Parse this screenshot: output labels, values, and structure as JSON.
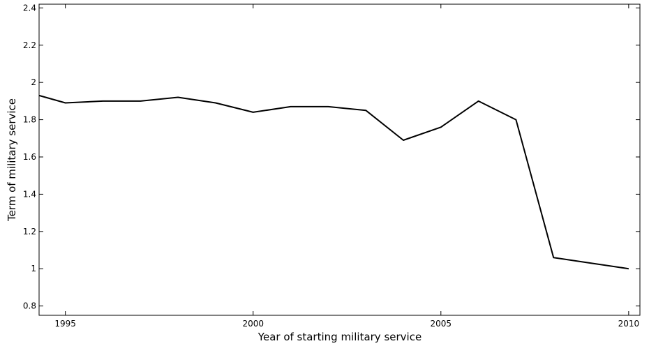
{
  "chart_data": {
    "type": "line",
    "title": "",
    "xlabel": "Year of starting military service",
    "ylabel": "Term of military service",
    "xlim": [
      1994.3,
      2010.3
    ],
    "ylim": [
      0.75,
      2.42
    ],
    "xticks": [
      1995,
      2000,
      2005,
      2010
    ],
    "yticks": [
      0.8,
      1,
      1.2,
      1.4,
      1.6,
      1.8,
      2,
      2.2,
      2.4
    ],
    "xtick_labels": [
      "1995",
      "2000",
      "2005",
      "2010"
    ],
    "ytick_labels": [
      "0.8",
      "1",
      "1.2",
      "1.4",
      "1.6",
      "1.8",
      "2",
      "2.2",
      "2.4"
    ],
    "grid": false,
    "legend": "none",
    "line_color": "#000000",
    "series": [
      {
        "x": [
          1994.3,
          1995,
          1996,
          1997,
          1998,
          1999,
          2000,
          2001,
          2002,
          2003,
          2004,
          2005,
          2006,
          2007,
          2008,
          2009,
          2010
        ],
        "values": [
          1.93,
          1.89,
          1.9,
          1.9,
          1.92,
          1.89,
          1.84,
          1.87,
          1.87,
          1.85,
          1.69,
          1.76,
          1.9,
          1.8,
          1.06,
          1.03,
          1.0
        ]
      }
    ]
  }
}
